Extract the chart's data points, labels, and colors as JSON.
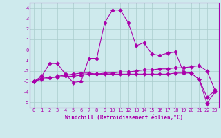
{
  "xlabel": "Windchill (Refroidissement éolien,°C)",
  "background_color": "#ceeaed",
  "grid_color": "#aacccc",
  "line_color": "#aa00aa",
  "xlim": [
    -0.5,
    23.5
  ],
  "ylim": [
    -5.5,
    4.5
  ],
  "xticks": [
    0,
    1,
    2,
    3,
    4,
    5,
    6,
    7,
    8,
    9,
    10,
    11,
    12,
    13,
    14,
    15,
    16,
    17,
    18,
    19,
    20,
    21,
    22,
    23
  ],
  "yticks": [
    -5,
    -4,
    -3,
    -2,
    -1,
    0,
    1,
    2,
    3,
    4
  ],
  "series1_x": [
    0,
    1,
    2,
    3,
    4,
    5,
    6,
    7,
    8,
    9,
    10,
    11,
    12,
    13,
    14,
    15,
    16,
    17,
    18,
    19,
    20,
    21,
    22,
    23
  ],
  "series1_y": [
    -3.0,
    -2.5,
    -1.3,
    -1.3,
    -2.3,
    -3.1,
    -3.0,
    -0.8,
    -0.8,
    2.6,
    3.8,
    3.8,
    2.6,
    0.4,
    0.7,
    -0.4,
    -0.5,
    -0.3,
    -0.2,
    -2.1,
    -2.2,
    -2.8,
    -4.5,
    -3.9
  ],
  "series2_x": [
    0,
    1,
    2,
    3,
    4,
    5,
    6,
    7,
    8,
    9,
    10,
    11,
    12,
    13,
    14,
    15,
    16,
    17,
    18,
    19,
    20,
    21,
    22,
    23
  ],
  "series2_y": [
    -3.0,
    -2.7,
    -2.6,
    -2.6,
    -2.5,
    -2.5,
    -2.4,
    -2.3,
    -2.3,
    -2.2,
    -2.2,
    -2.1,
    -2.1,
    -2.0,
    -1.9,
    -1.9,
    -1.8,
    -1.8,
    -1.7,
    -1.7,
    -1.6,
    -1.5,
    -2.0,
    -3.8
  ],
  "series3_x": [
    0,
    1,
    2,
    3,
    4,
    5,
    6,
    7,
    8,
    9,
    10,
    11,
    12,
    13,
    14,
    15,
    16,
    17,
    18,
    19,
    20,
    21,
    22,
    23
  ],
  "series3_y": [
    -3.0,
    -2.8,
    -2.7,
    -2.5,
    -2.4,
    -2.3,
    -2.2,
    -2.2,
    -2.3,
    -2.3,
    -2.3,
    -2.3,
    -2.3,
    -2.3,
    -2.3,
    -2.3,
    -2.3,
    -2.3,
    -2.2,
    -2.2,
    -2.2,
    -2.8,
    -5.1,
    -4.0
  ],
  "tick_fontsize": 5.0,
  "xlabel_fontsize": 5.5,
  "marker_size": 3.0,
  "line_width": 0.8
}
